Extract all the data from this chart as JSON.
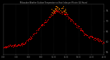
{
  "title": "Milwaukee Weather Outdoor Temperature vs Heat Index per Minute (24 Hours)",
  "temp_color": "#ff0000",
  "heat_index_color": "#ff8800",
  "background_color": "#000000",
  "grid_color": "#555555",
  "text_color": "#aaaaaa",
  "tick_color": "#888888",
  "ylim": [
    54,
    78
  ],
  "xlim": [
    0,
    1440
  ],
  "yticks": [
    55,
    60,
    65,
    70,
    75
  ],
  "xtick_positions": [
    0,
    180,
    360,
    540,
    720,
    900,
    1080,
    1260,
    1440
  ],
  "xlabels": [
    "0:00",
    "3:00",
    "6:00",
    "9:00",
    "12:00",
    "15:00",
    "18:00",
    "21:00",
    "24:00"
  ],
  "dot_size": 0.8,
  "sample_every": 5
}
